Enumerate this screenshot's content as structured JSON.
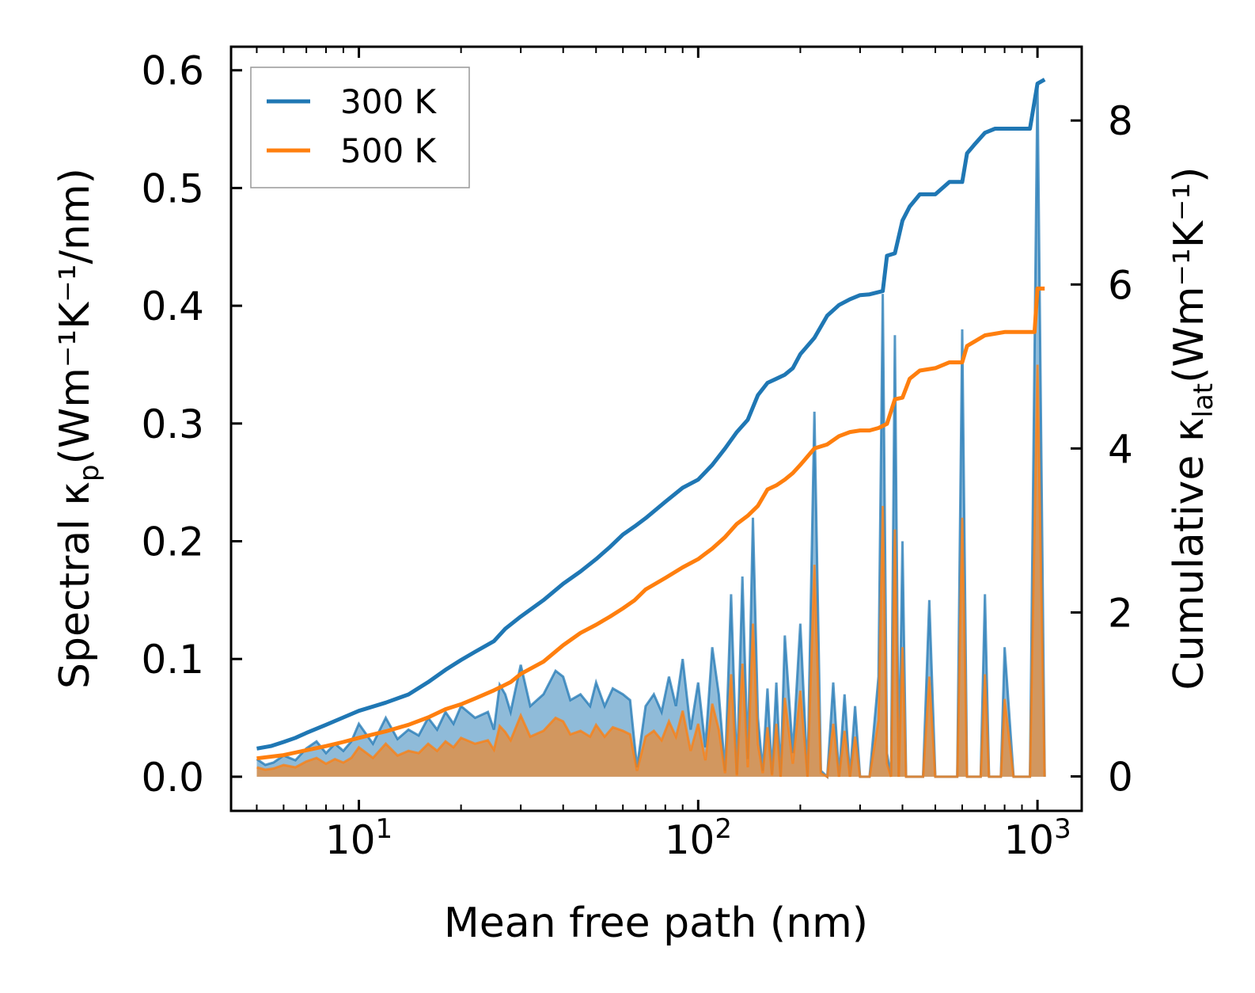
{
  "chart_data": {
    "type": "line",
    "x_scale": "log",
    "xlim": [
      4.2,
      1350
    ],
    "ylim_left": [
      -0.029,
      0.62
    ],
    "ylim_right": [
      -0.42,
      8.9
    ],
    "xlabel": "Mean free path (nm)",
    "ylabel_left": "Spectral κ",
    "ylabel_left_sub": "p",
    "ylabel_left_units": "(Wm⁻¹K⁻¹/nm)",
    "ylabel_right": "Cumulative κ",
    "ylabel_right_sub": "lat",
    "ylabel_right_units": "(Wm⁻¹K⁻¹)",
    "x_ticks": [
      {
        "value": 10,
        "base": "10",
        "exp": "1"
      },
      {
        "value": 100,
        "base": "10",
        "exp": "2"
      },
      {
        "value": 1000,
        "base": "10",
        "exp": "3"
      }
    ],
    "y_ticks_left": [
      {
        "value": 0.0,
        "label": "0.0"
      },
      {
        "value": 0.1,
        "label": "0.1"
      },
      {
        "value": 0.2,
        "label": "0.2"
      },
      {
        "value": 0.3,
        "label": "0.3"
      },
      {
        "value": 0.4,
        "label": "0.4"
      },
      {
        "value": 0.5,
        "label": "0.5"
      },
      {
        "value": 0.6,
        "label": "0.6"
      }
    ],
    "y_ticks_right": [
      {
        "value": 0,
        "label": "0"
      },
      {
        "value": 2,
        "label": "2"
      },
      {
        "value": 4,
        "label": "4"
      },
      {
        "value": 6,
        "label": "6"
      },
      {
        "value": 8,
        "label": "8"
      }
    ],
    "legend": {
      "position": "top-left"
    },
    "series": [
      {
        "name": "300 K",
        "color": "#1f77b4",
        "cumulative": {
          "x": [
            5,
            5.5,
            6,
            6.5,
            7,
            8,
            9,
            10,
            12,
            14,
            16,
            18,
            20,
            22,
            25,
            27,
            30,
            35,
            40,
            45,
            50,
            55,
            60,
            65,
            70,
            80,
            90,
            100,
            110,
            120,
            130,
            140,
            150,
            160,
            170,
            180,
            190,
            200,
            220,
            240,
            260,
            280,
            300,
            320,
            350,
            360,
            380,
            400,
            420,
            450,
            500,
            550,
            600,
            620,
            650,
            700,
            750,
            800,
            950,
            1000,
            1050
          ],
          "y": [
            0.34,
            0.37,
            0.42,
            0.47,
            0.53,
            0.63,
            0.72,
            0.8,
            0.9,
            1.0,
            1.15,
            1.3,
            1.42,
            1.52,
            1.65,
            1.8,
            1.95,
            2.15,
            2.35,
            2.5,
            2.65,
            2.8,
            2.95,
            3.05,
            3.15,
            3.35,
            3.52,
            3.62,
            3.8,
            4.0,
            4.2,
            4.35,
            4.65,
            4.8,
            4.85,
            4.9,
            4.98,
            5.15,
            5.35,
            5.62,
            5.75,
            5.82,
            5.87,
            5.88,
            5.92,
            6.35,
            6.38,
            6.78,
            6.95,
            7.1,
            7.1,
            7.25,
            7.25,
            7.6,
            7.7,
            7.85,
            7.9,
            7.9,
            7.9,
            8.45,
            8.5
          ]
        },
        "spectral": {
          "x": [
            5,
            5.3,
            5.6,
            6,
            6.5,
            7,
            7.5,
            8,
            8.5,
            9,
            9.5,
            10,
            11,
            12,
            13,
            14,
            15,
            16,
            17,
            18,
            19,
            20,
            22,
            24,
            25,
            26,
            27,
            28,
            30,
            32,
            35,
            38,
            40,
            42,
            45,
            48,
            50,
            53,
            56,
            60,
            63,
            66,
            70,
            74,
            78,
            82,
            86,
            90,
            95,
            100,
            105,
            110,
            115,
            120,
            125,
            130,
            135,
            140,
            145,
            150,
            155,
            160,
            165,
            170,
            175,
            180,
            190,
            200,
            210,
            220,
            230,
            240,
            250,
            260,
            270,
            280,
            290,
            300,
            320,
            340,
            350,
            360,
            370,
            380,
            390,
            400,
            410,
            420,
            440,
            460,
            480,
            500,
            520,
            540,
            560,
            580,
            600,
            620,
            640,
            660,
            680,
            700,
            720,
            750,
            780,
            800,
            850,
            900,
            950,
            1000,
            1050
          ],
          "y": [
            0.015,
            0.01,
            0.012,
            0.018,
            0.014,
            0.024,
            0.03,
            0.02,
            0.028,
            0.022,
            0.03,
            0.045,
            0.028,
            0.05,
            0.032,
            0.04,
            0.035,
            0.05,
            0.04,
            0.055,
            0.045,
            0.06,
            0.05,
            0.055,
            0.04,
            0.078,
            0.07,
            0.055,
            0.095,
            0.06,
            0.07,
            0.09,
            0.085,
            0.065,
            0.07,
            0.06,
            0.08,
            0.06,
            0.075,
            0.07,
            0.065,
            0.008,
            0.06,
            0.07,
            0.055,
            0.085,
            0.06,
            0.1,
            0.04,
            0.08,
            0.025,
            0.11,
            0.07,
            0.005,
            0.155,
            0.002,
            0.17,
            0.015,
            0.22,
            0.05,
            0.005,
            0.075,
            0.002,
            0.08,
            0.0,
            0.12,
            0.02,
            0.13,
            0.0,
            0.31,
            0.005,
            0.0,
            0.08,
            0.0,
            0.07,
            0.0,
            0.06,
            0.0,
            0.0,
            0.085,
            0.41,
            0.02,
            0.0,
            0.375,
            0.0,
            0.2,
            0.0,
            0.0,
            0.0,
            0.0,
            0.15,
            0.0,
            0.0,
            0.0,
            0.0,
            0.0,
            0.38,
            0.0,
            0.0,
            0.0,
            0.0,
            0.155,
            0.0,
            0.0,
            0.0,
            0.11,
            0.0,
            0.0,
            0.0,
            0.59,
            0.0
          ]
        }
      },
      {
        "name": "500 K",
        "color": "#ff7f0e",
        "cumulative": {
          "x": [
            5,
            6,
            7,
            8,
            9,
            10,
            12,
            14,
            16,
            18,
            20,
            22,
            25,
            28,
            30,
            35,
            40,
            45,
            50,
            55,
            60,
            65,
            70,
            80,
            90,
            100,
            110,
            120,
            130,
            140,
            150,
            160,
            170,
            180,
            190,
            200,
            220,
            240,
            260,
            280,
            300,
            320,
            340,
            360,
            380,
            400,
            420,
            450,
            500,
            550,
            600,
            620,
            650,
            700,
            750,
            800,
            900,
            950,
            980,
            1000,
            1050
          ],
          "y": [
            0.22,
            0.26,
            0.32,
            0.37,
            0.42,
            0.47,
            0.55,
            0.63,
            0.72,
            0.82,
            0.88,
            0.95,
            1.05,
            1.15,
            1.25,
            1.4,
            1.6,
            1.75,
            1.85,
            1.95,
            2.05,
            2.15,
            2.28,
            2.42,
            2.55,
            2.65,
            2.78,
            2.92,
            3.08,
            3.18,
            3.3,
            3.5,
            3.55,
            3.62,
            3.7,
            3.8,
            4.0,
            4.05,
            4.15,
            4.2,
            4.22,
            4.22,
            4.25,
            4.3,
            4.6,
            4.62,
            4.85,
            4.95,
            4.98,
            5.05,
            5.05,
            5.25,
            5.3,
            5.38,
            5.4,
            5.42,
            5.42,
            5.42,
            5.42,
            5.95,
            5.95
          ]
        },
        "spectral": {
          "x": [
            5,
            5.3,
            5.6,
            6,
            6.5,
            7,
            7.5,
            8,
            8.5,
            9,
            9.5,
            10,
            11,
            12,
            13,
            14,
            15,
            16,
            17,
            18,
            19,
            20,
            22,
            24,
            25,
            26,
            27,
            28,
            30,
            32,
            35,
            38,
            40,
            42,
            45,
            48,
            50,
            53,
            56,
            60,
            63,
            66,
            70,
            74,
            78,
            82,
            86,
            90,
            95,
            100,
            105,
            110,
            115,
            120,
            125,
            130,
            135,
            140,
            145,
            150,
            155,
            160,
            165,
            170,
            175,
            180,
            190,
            200,
            210,
            220,
            230,
            240,
            250,
            260,
            270,
            280,
            290,
            300,
            320,
            340,
            350,
            360,
            370,
            380,
            390,
            400,
            410,
            420,
            440,
            460,
            480,
            500,
            520,
            540,
            560,
            580,
            600,
            620,
            640,
            660,
            680,
            700,
            720,
            750,
            780,
            800,
            850,
            900,
            950,
            1000,
            1050
          ],
          "y": [
            0.008,
            0.006,
            0.007,
            0.01,
            0.008,
            0.013,
            0.016,
            0.011,
            0.015,
            0.012,
            0.016,
            0.025,
            0.016,
            0.028,
            0.018,
            0.022,
            0.02,
            0.028,
            0.022,
            0.03,
            0.025,
            0.033,
            0.028,
            0.031,
            0.023,
            0.043,
            0.038,
            0.031,
            0.052,
            0.034,
            0.039,
            0.05,
            0.047,
            0.036,
            0.039,
            0.034,
            0.044,
            0.034,
            0.042,
            0.039,
            0.036,
            0.005,
            0.034,
            0.039,
            0.031,
            0.047,
            0.034,
            0.056,
            0.022,
            0.045,
            0.014,
            0.062,
            0.04,
            0.003,
            0.087,
            0.001,
            0.096,
            0.008,
            0.13,
            0.028,
            0.003,
            0.042,
            0.001,
            0.045,
            0.0,
            0.067,
            0.011,
            0.073,
            0.0,
            0.18,
            0.003,
            0.0,
            0.045,
            0.0,
            0.039,
            0.0,
            0.034,
            0.0,
            0.0,
            0.048,
            0.23,
            0.011,
            0.0,
            0.21,
            0.0,
            0.11,
            0.0,
            0.0,
            0.0,
            0.0,
            0.085,
            0.0,
            0.0,
            0.0,
            0.0,
            0.0,
            0.22,
            0.0,
            0.0,
            0.0,
            0.0,
            0.087,
            0.0,
            0.0,
            0.0,
            0.066,
            0.0,
            0.0,
            0.0,
            0.35,
            0.0
          ]
        }
      }
    ]
  }
}
